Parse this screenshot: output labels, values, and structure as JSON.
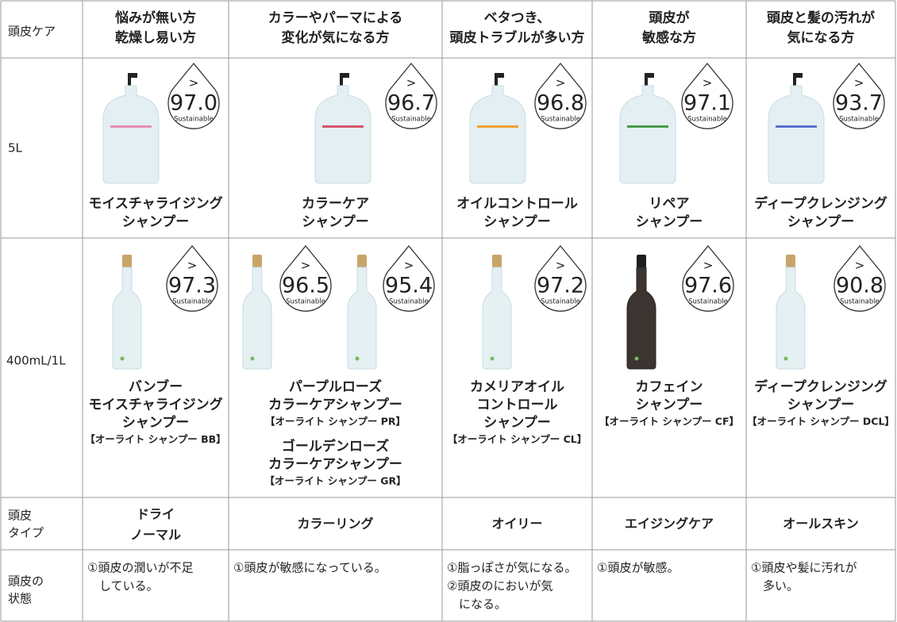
{
  "table": {
    "corner": "頭皮ケア",
    "columns": [
      [
        "悩みが無い方",
        "乾燥し易い方"
      ],
      [
        "カラーやパーマによる",
        "変化が気になる方"
      ],
      [
        "ベタつき、",
        "頭皮トラブルが多い方"
      ],
      [
        "頭皮が",
        "敏感な方"
      ],
      [
        "頭皮と髪の汚れが",
        "気になる方"
      ]
    ],
    "badge": {
      "symbol": ">",
      "caption": "Sustainable"
    },
    "row_labels": {
      "large": "5L",
      "small": "400mL/1L",
      "scalp_type": [
        "頭皮",
        "タイプ"
      ],
      "scalp_state": [
        "頭皮の",
        "状態"
      ]
    },
    "large": [
      {
        "score": "97.0",
        "name": [
          "モイスチャライジング",
          "シャンプー"
        ]
      },
      {
        "score": "96.7",
        "name": [
          "カラーケア",
          "シャンプー"
        ]
      },
      {
        "score": "96.8",
        "name": [
          "オイルコントロール",
          "シャンプー"
        ]
      },
      {
        "score": "97.1",
        "name": [
          "リペア",
          "シャンプー"
        ]
      },
      {
        "score": "93.7",
        "name": [
          "ディープクレンジング",
          "シャンプー"
        ]
      }
    ],
    "small": [
      [
        {
          "score": "97.3",
          "name": [
            "バンブー",
            "モイスチャライジング",
            "シャンプー"
          ],
          "code": "【オーライト シャンプー BB】"
        }
      ],
      [
        {
          "score": "96.5",
          "name": [
            "パープルローズ",
            "カラーケアシャンプー"
          ],
          "code": "【オーライト シャンプー PR】"
        },
        {
          "score": "95.4",
          "name": [
            "ゴールデンローズ",
            "カラーケアシャンプー"
          ],
          "code": "【オーライト シャンプー GR】"
        }
      ],
      [
        {
          "score": "97.2",
          "name": [
            "カメリアオイル",
            "コントロール",
            "シャンプー"
          ],
          "code": "【オーライト シャンプー CL】"
        }
      ],
      [
        {
          "score": "97.6",
          "name": [
            "カフェイン",
            "シャンプー"
          ],
          "code": "【オーライト シャンプー CF】"
        }
      ],
      [
        {
          "score": "90.8",
          "name": [
            "ディープクレンジング",
            "シャンプー"
          ],
          "code": "【オーライト シャンプー DCL】"
        }
      ]
    ],
    "scalp_type": [
      [
        "ドライ",
        "ノーマル"
      ],
      [
        "カラーリング"
      ],
      [
        "オイリー"
      ],
      [
        "エイジングケア"
      ],
      [
        "オールスキン"
      ]
    ],
    "scalp_state": [
      [
        "①頭皮の潤いが不足",
        "している。"
      ],
      [
        "①頭皮が敏感になっている。"
      ],
      [
        "①脂っぽさが気になる。",
        "②頭皮のにおいが気",
        "になる。"
      ],
      [
        "①頭皮が敏感。"
      ],
      [
        "①頭皮や髪に汚れが",
        "多い。"
      ]
    ]
  }
}
